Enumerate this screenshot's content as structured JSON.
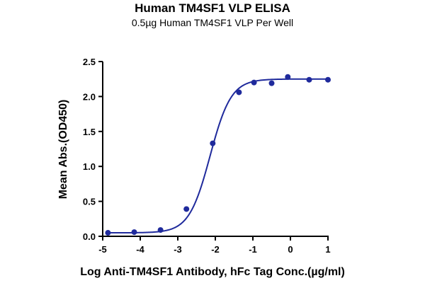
{
  "chart_data": {
    "type": "scatter",
    "title": "Human TM4SF1 VLP ELISA",
    "subtitle": "0.5µg Human TM4SF1 VLP Per Well",
    "xlabel": "Log Anti-TM4SF1 Antibody, hFc Tag Conc.(µg/ml)",
    "ylabel": "Mean Abs.(OD450)",
    "xlim": [
      -5,
      1
    ],
    "ylim": [
      0,
      2.5
    ],
    "xticks": [
      "-5",
      "-4",
      "-3",
      "-2",
      "-1",
      "0",
      "1"
    ],
    "yticks": [
      "0.0",
      "0.5",
      "1.0",
      "1.5",
      "2.0",
      "2.5"
    ],
    "grid": false,
    "color": "#1f2a9c",
    "x": [
      -4.86,
      -4.16,
      -3.46,
      -2.77,
      -2.07,
      -1.37,
      -0.97,
      -0.5,
      -0.07,
      0.5,
      1.0
    ],
    "y": [
      0.05,
      0.06,
      0.09,
      0.39,
      1.33,
      2.06,
      2.2,
      2.19,
      2.28,
      2.24,
      2.24
    ],
    "fit": {
      "bottom": 0.05,
      "top": 2.25,
      "logEC50": -2.14,
      "hill": 1.55
    }
  }
}
